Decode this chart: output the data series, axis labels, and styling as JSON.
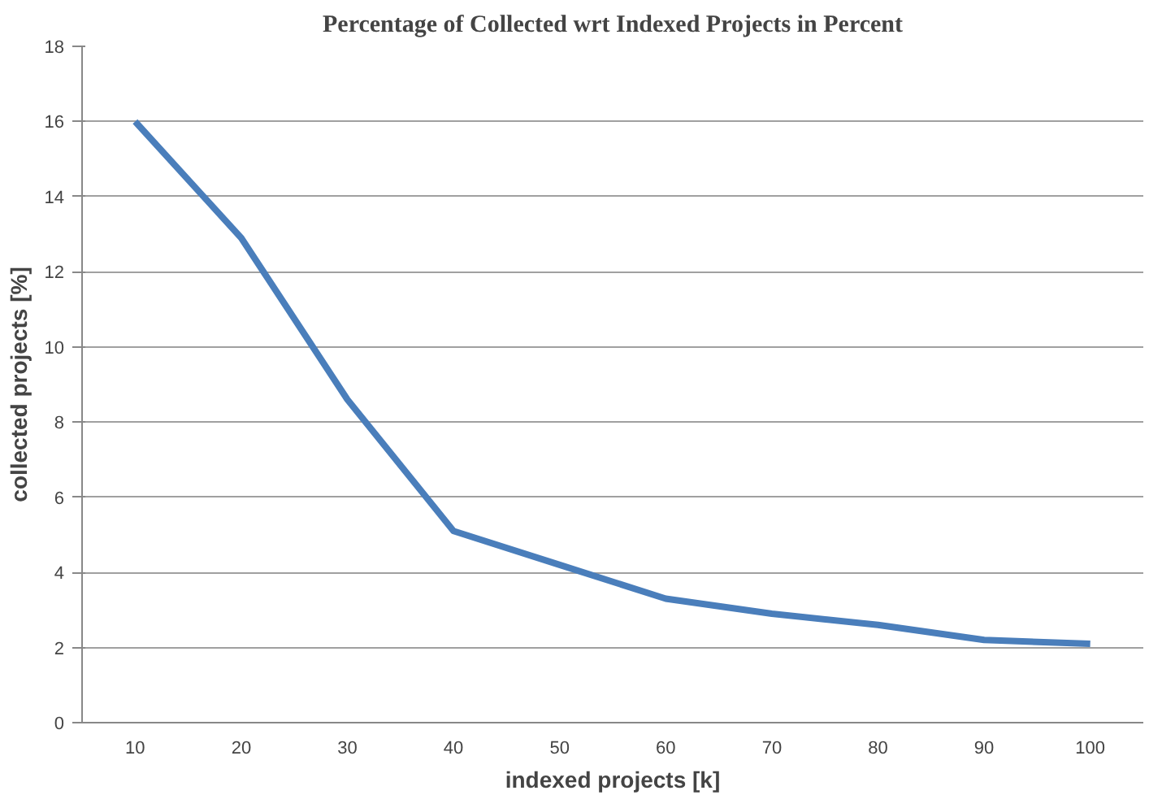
{
  "chart_data": {
    "type": "line",
    "title": "Percentage of Collected wrt Indexed Projects in Percent",
    "xlabel": "indexed projects [k]",
    "ylabel": "collected projects [%]",
    "categories": [
      "10",
      "20",
      "30",
      "40",
      "50",
      "60",
      "70",
      "80",
      "90",
      "100"
    ],
    "series": [
      {
        "color": "#4a7ebb",
        "values": [
          16.0,
          12.9,
          8.6,
          5.1,
          4.2,
          3.3,
          2.9,
          2.6,
          2.2,
          2.1
        ]
      }
    ],
    "ylim": [
      0,
      18
    ],
    "yticks": [
      0,
      2,
      4,
      6,
      8,
      10,
      12,
      14,
      16,
      18
    ],
    "grid": "y",
    "marker": "none",
    "line_style": "solid"
  }
}
